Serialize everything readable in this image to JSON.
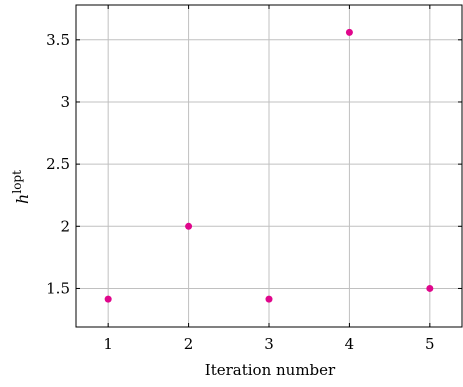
{
  "chart_data": {
    "type": "scatter",
    "x": [
      1,
      2,
      3,
      4,
      5
    ],
    "y": [
      1.414,
      2.0,
      1.414,
      3.56,
      1.5
    ],
    "xlabel": "Iteration number",
    "ylabel": {
      "base": "h",
      "sup": "lopt"
    },
    "xticks": [
      "1",
      "2",
      "3",
      "4",
      "5"
    ],
    "yticks": [
      "1.5",
      "2",
      "2.5",
      "3",
      "3.5"
    ],
    "xlim": [
      0.6,
      5.4
    ],
    "ylim": [
      1.19,
      3.78
    ],
    "grid": true,
    "marker_color": "#e0068c"
  }
}
